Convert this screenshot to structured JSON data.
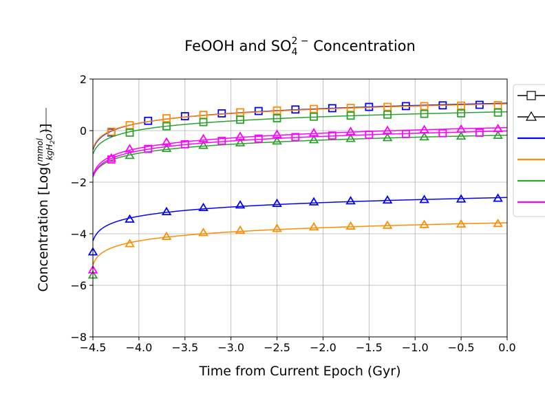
{
  "chart_data": {
    "type": "line",
    "title": {
      "prefix": "FeOOH and SO",
      "sub": "4",
      "sup": "2 −",
      "suffix": " Concentration"
    },
    "xlabel": "Time from Current Epoch (Gyr)",
    "ylabel": {
      "prefix": "Concentration [Log(",
      "frac_num": "mmol",
      "frac_den": "kgH",
      "frac_den_sub": "2",
      "frac_den_tail": "O",
      "suffix": ")]"
    },
    "xlim": [
      -4.5,
      0.0
    ],
    "ylim": [
      -8,
      2
    ],
    "xticks": [
      -4.5,
      -4.0,
      -3.5,
      -3.0,
      -2.5,
      -2.0,
      -1.5,
      -1.0,
      -0.5,
      0.0
    ],
    "xtick_labels": [
      "−4.5",
      "−4.0",
      "−3.5",
      "−3.0",
      "−2.5",
      "−2.0",
      "−1.5",
      "−1.0",
      "−0.5",
      "0.0"
    ],
    "yticks": [
      -8,
      -6,
      -4,
      -2,
      0,
      2
    ],
    "ytick_labels": [
      "−8",
      "−6",
      "−4",
      "−2",
      "0",
      "2"
    ],
    "grid": true,
    "legend_position": "right (partially cropped)",
    "legend_entries": [
      {
        "marker": "square",
        "color": "#000000",
        "line": true
      },
      {
        "marker": "triangle",
        "color": "#000000",
        "line": true
      },
      {
        "marker": "none",
        "color": "#0000ff",
        "line": true
      },
      {
        "marker": "none",
        "color": "#ff8c00",
        "line": true
      },
      {
        "marker": "none",
        "color": "#2ca02c",
        "line": true
      },
      {
        "marker": "none",
        "color": "#ff00ff",
        "line": true
      }
    ],
    "series": [
      {
        "color": "#0000ff",
        "curves": [
          {
            "marker": "square",
            "x": [
              -4.3,
              -3.9,
              -3.5,
              -3.1,
              -2.7,
              -2.3,
              -1.9,
              -1.5,
              -1.1,
              -0.7,
              -0.3
            ],
            "y": [
              -0.07,
              0.38,
              0.56,
              0.67,
              0.76,
              0.82,
              0.87,
              0.92,
              0.95,
              0.98,
              1.0
            ]
          },
          {
            "marker": "triangle",
            "x": [
              -4.5,
              -4.1,
              -3.7,
              -3.3,
              -2.9,
              -2.5,
              -2.1,
              -1.7,
              -1.3,
              -0.9,
              -0.5,
              -0.1
            ],
            "y": [
              -4.72,
              -3.45,
              -3.16,
              -3.0,
              -2.9,
              -2.84,
              -2.78,
              -2.74,
              -2.71,
              -2.69,
              -2.67,
              -2.64
            ]
          }
        ]
      },
      {
        "color": "#ff8c00",
        "curves": [
          {
            "marker": "square",
            "x": [
              -4.3,
              -4.1,
              -3.7,
              -3.3,
              -2.9,
              -2.5,
              -2.1,
              -1.7,
              -1.3,
              -0.9,
              -0.5,
              -0.1
            ],
            "y": [
              -0.04,
              0.21,
              0.48,
              0.61,
              0.71,
              0.78,
              0.84,
              0.88,
              0.92,
              0.95,
              0.97,
              0.99
            ]
          },
          {
            "marker": "triangle",
            "x": [
              -4.1,
              -3.7,
              -3.3,
              -2.9,
              -2.5,
              -2.1,
              -1.7,
              -1.3,
              -0.9,
              -0.5,
              -0.1
            ],
            "y": [
              -4.4,
              -4.12,
              -3.97,
              -3.88,
              -3.81,
              -3.75,
              -3.72,
              -3.69,
              -3.66,
              -3.64,
              -3.62
            ]
          }
        ]
      },
      {
        "color": "#2ca02c",
        "curves": [
          {
            "marker": "square",
            "x": [
              -4.1,
              -3.7,
              -3.3,
              -2.9,
              -2.5,
              -2.1,
              -1.7,
              -1.3,
              -0.9,
              -0.5,
              -0.1
            ],
            "y": [
              -0.08,
              0.17,
              0.33,
              0.42,
              0.48,
              0.54,
              0.58,
              0.62,
              0.65,
              0.67,
              0.7
            ]
          },
          {
            "marker": "triangle",
            "x": [
              -4.5,
              -4.1,
              -3.7,
              -3.3,
              -2.9,
              -2.5,
              -2.1,
              -1.7,
              -1.3,
              -0.9,
              -0.5,
              -0.1
            ],
            "y": [
              -5.62,
              -0.98,
              -0.71,
              -0.59,
              -0.49,
              -0.42,
              -0.37,
              -0.32,
              -0.29,
              -0.26,
              -0.23,
              -0.2
            ]
          }
        ]
      },
      {
        "color": "#ff00ff",
        "curves": [
          {
            "marker": "square",
            "x": [
              -4.3,
              -3.9,
              -3.5,
              -3.1,
              -2.7,
              -2.3,
              -1.9,
              -1.5,
              -1.1,
              -0.7,
              -0.3
            ],
            "y": [
              -1.12,
              -0.71,
              -0.53,
              -0.4,
              -0.31,
              -0.25,
              -0.19,
              -0.16,
              -0.13,
              -0.1,
              -0.08
            ]
          },
          {
            "marker": "triangle",
            "x": [
              -4.5,
              -4.3,
              -4.1,
              -3.7,
              -3.3,
              -2.9,
              -2.5,
              -2.1,
              -1.7,
              -1.3,
              -0.9,
              -0.5,
              -0.1
            ],
            "y": [
              -5.42,
              -1.08,
              -0.72,
              -0.46,
              -0.33,
              -0.24,
              -0.16,
              -0.1,
              -0.05,
              -0.01,
              0.02,
              0.04,
              0.06
            ]
          }
        ]
      }
    ]
  }
}
